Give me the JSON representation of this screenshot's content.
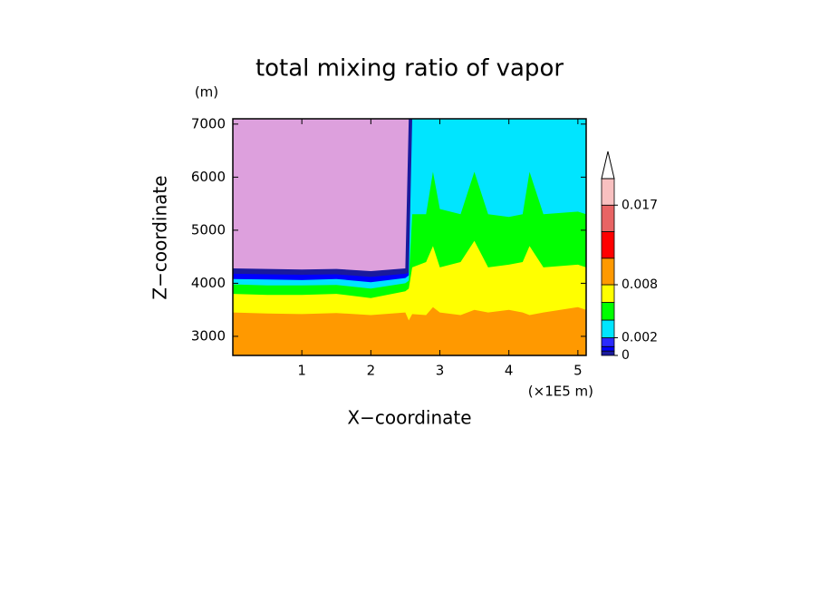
{
  "chart_data": {
    "type": "contour",
    "title": "total mixing ratio of vapor",
    "y_unit": "(m)",
    "x_unit": "(×1E5 m)",
    "xlabel": "X−coordinate",
    "ylabel": "Z−coordinate",
    "xlim": [
      0,
      5.12
    ],
    "ylim": [
      2640,
      7100
    ],
    "xticks": [
      1,
      2,
      3,
      4,
      5
    ],
    "yticks": [
      3000,
      4000,
      5000,
      6000,
      7000
    ],
    "background": "#dda0dd",
    "x": [
      0,
      0.5,
      1,
      1.5,
      2,
      2.5,
      2.55,
      2.6,
      2.8,
      2.9,
      3.0,
      3.3,
      3.5,
      3.7,
      4.0,
      4.2,
      4.3,
      4.5,
      5.0,
      5.12
    ],
    "layers": [
      {
        "color": "#1a1a9c",
        "top": [
          4280,
          4270,
          4260,
          4270,
          4230,
          4280,
          7100,
          7100,
          7100,
          7100,
          7100,
          7100,
          7100,
          7100,
          7100,
          7100,
          7100,
          7100,
          7100,
          7100
        ]
      },
      {
        "color": "#0000ff",
        "top": [
          4180,
          4170,
          4160,
          4170,
          4120,
          4180,
          4200,
          7100,
          7100,
          7100,
          7100,
          7100,
          7100,
          7100,
          7100,
          7100,
          7100,
          7100,
          7100,
          7100
        ]
      },
      {
        "color": "#00e5ff",
        "top": [
          4080,
          4070,
          4060,
          4080,
          4020,
          4100,
          4150,
          7100,
          7100,
          7100,
          7100,
          7100,
          7100,
          7100,
          7100,
          7100,
          7100,
          7100,
          7100,
          7100
        ]
      },
      {
        "color": "#00ff00",
        "top": [
          3980,
          3960,
          3960,
          3970,
          3900,
          4000,
          4050,
          5300,
          5300,
          6100,
          5400,
          5300,
          6100,
          5300,
          5250,
          5300,
          6100,
          5300,
          5350,
          5300
        ]
      },
      {
        "color": "#ffff00",
        "top": [
          3800,
          3780,
          3780,
          3800,
          3720,
          3850,
          3900,
          4300,
          4400,
          4700,
          4300,
          4400,
          4800,
          4300,
          4350,
          4400,
          4700,
          4300,
          4350,
          4300
        ]
      },
      {
        "color": "#ff9900",
        "top": [
          3450,
          3430,
          3420,
          3440,
          3400,
          3450,
          3300,
          3420,
          3400,
          3550,
          3450,
          3400,
          3500,
          3450,
          3500,
          3450,
          3400,
          3450,
          3550,
          3500
        ]
      }
    ],
    "colorbar": {
      "lim": [
        0,
        0.02
      ],
      "levels": [
        0,
        0.0005,
        0.001,
        0.002,
        0.004,
        0.006,
        0.008,
        0.011,
        0.014,
        0.017,
        0.02
      ],
      "colors": [
        "#1a1a9c",
        "#0000ff",
        "#2a2aff",
        "#00e5ff",
        "#00ff00",
        "#ffff00",
        "#ff9900",
        "#ff0000",
        "#e86464",
        "#f8c0c0"
      ],
      "ticks": [
        0,
        0.002,
        0.008,
        0.017
      ]
    }
  }
}
